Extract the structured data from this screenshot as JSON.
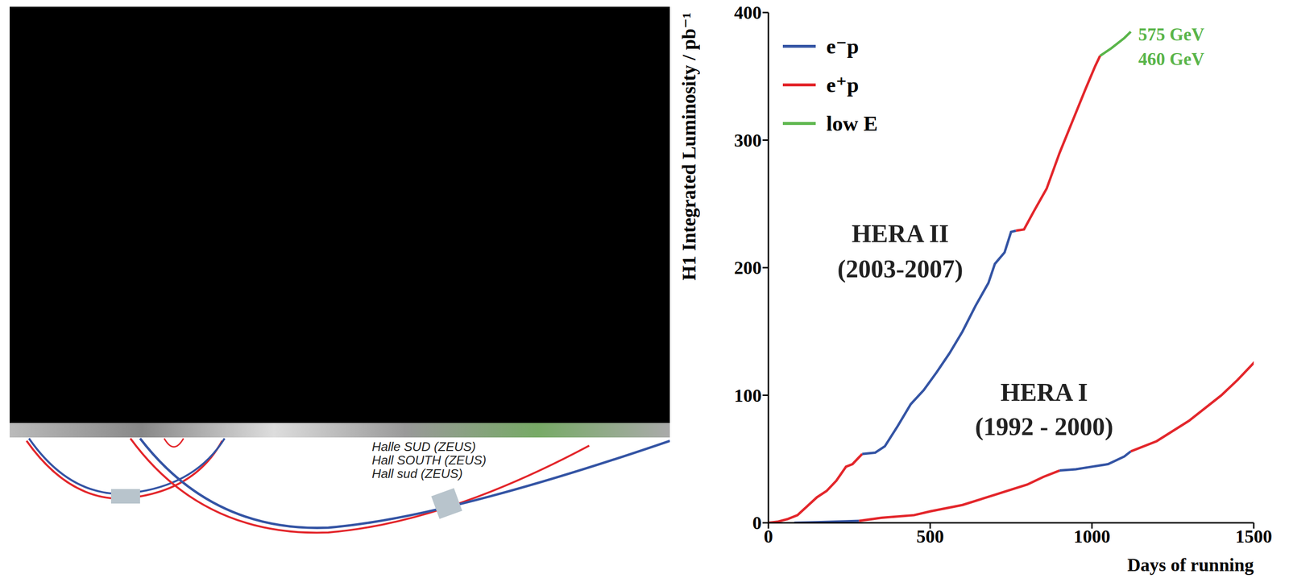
{
  "chart_data": {
    "type": "line",
    "xlabel": "Days of running",
    "ylabel": "H1 Integrated Luminosity / pb⁻¹",
    "xlim": [
      0,
      1500
    ],
    "xticks": [
      0,
      500,
      1000,
      1500
    ],
    "ylim": [
      0,
      400
    ],
    "yticks": [
      0,
      100,
      200,
      300,
      400
    ],
    "grid": false,
    "legend": "upper left",
    "series": [
      {
        "name": "e⁻p",
        "color": "#3454a4",
        "x": [
          80,
          150,
          280
        ],
        "values": [
          0,
          0.5,
          1.5
        ]
      },
      {
        "name": "e⁺p",
        "color": "#e3262b",
        "x": [
          0,
          30,
          60,
          90,
          120,
          150,
          180,
          210,
          240,
          260,
          290
        ],
        "values": [
          0,
          1,
          3,
          6,
          13,
          20,
          25,
          33,
          44,
          46,
          54
        ]
      },
      {
        "name": "low E",
        "color": "#5ab54a",
        "x": [
          1025,
          1060,
          1100,
          1120
        ],
        "values": [
          366,
          372,
          380,
          385
        ]
      },
      {
        "name": "e⁻p",
        "color": "#3454a4",
        "x": [
          290,
          330,
          360,
          400,
          440,
          480,
          520,
          560,
          600,
          640,
          680,
          700,
          730,
          750,
          765
        ],
        "values": [
          54,
          55,
          60,
          76,
          93,
          104,
          118,
          133,
          150,
          170,
          188,
          203,
          212,
          228,
          229
        ]
      },
      {
        "name": "e⁺p",
        "color": "#e3262b",
        "x": [
          765,
          790,
          820,
          860,
          900,
          940,
          980,
          1010,
          1025
        ],
        "values": [
          229,
          230,
          244,
          262,
          290,
          315,
          340,
          358,
          366
        ]
      },
      {
        "name": "e⁺p",
        "color": "#e3262b",
        "x": [
          280,
          350,
          450,
          500,
          600,
          700,
          800,
          850,
          900
        ],
        "values": [
          1.5,
          4,
          6,
          9,
          14,
          22,
          30,
          36,
          41
        ]
      },
      {
        "name": "e⁻p",
        "color": "#3454a4",
        "x": [
          900,
          950,
          1000,
          1050,
          1100,
          1120
        ],
        "values": [
          41,
          42,
          44,
          46,
          52,
          56
        ]
      },
      {
        "name": "e⁺p",
        "color": "#e3262b",
        "x": [
          1120,
          1200,
          1300,
          1400,
          1450,
          1510
        ],
        "values": [
          56,
          64,
          80,
          100,
          112,
          128
        ]
      }
    ],
    "annotations": [
      {
        "text": "HERA II"
      },
      {
        "text": "(2003-2007)"
      },
      {
        "text": "HERA I"
      },
      {
        "text": "(1992 - 2000)"
      },
      {
        "text": "575 GeV",
        "color": "#5ab54a"
      },
      {
        "text": "460 GeV",
        "color": "#5ab54a"
      }
    ]
  },
  "diagram": {
    "labels": [
      "Halle SUD (ZEUS)",
      "Hall SOUTH (ZEUS)",
      "Hall sud (ZEUS)"
    ]
  }
}
